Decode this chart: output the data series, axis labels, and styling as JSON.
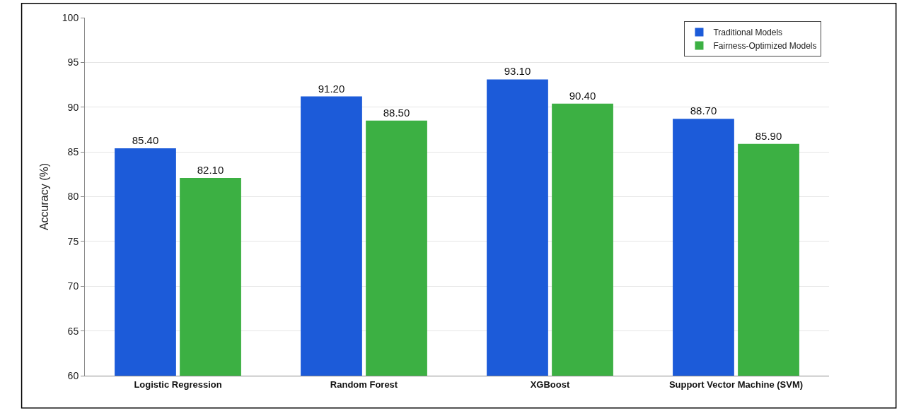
{
  "chart_data": {
    "type": "bar",
    "ylabel": "Accuracy (%)",
    "categories": [
      "Logistic Regression",
      "Random Forest",
      "XGBoost",
      "Support Vector Machine (SVM)"
    ],
    "series": [
      {
        "name": "Traditional Models",
        "color": "#1c5bd9",
        "values": [
          85.4,
          91.2,
          93.1,
          88.7
        ],
        "value_labels": [
          "85.40",
          "91.20",
          "93.10",
          "88.70"
        ]
      },
      {
        "name": "Fairness-Optimized Models",
        "color": "#3cb043",
        "values": [
          82.1,
          88.5,
          90.4,
          85.9
        ],
        "value_labels": [
          "82.10",
          "88.50",
          "90.40",
          "85.90"
        ]
      }
    ],
    "ylim": [
      60,
      100
    ],
    "yticks": [
      60,
      65,
      70,
      75,
      80,
      85,
      90,
      95,
      100
    ],
    "grid": "y",
    "legend": "top right"
  }
}
